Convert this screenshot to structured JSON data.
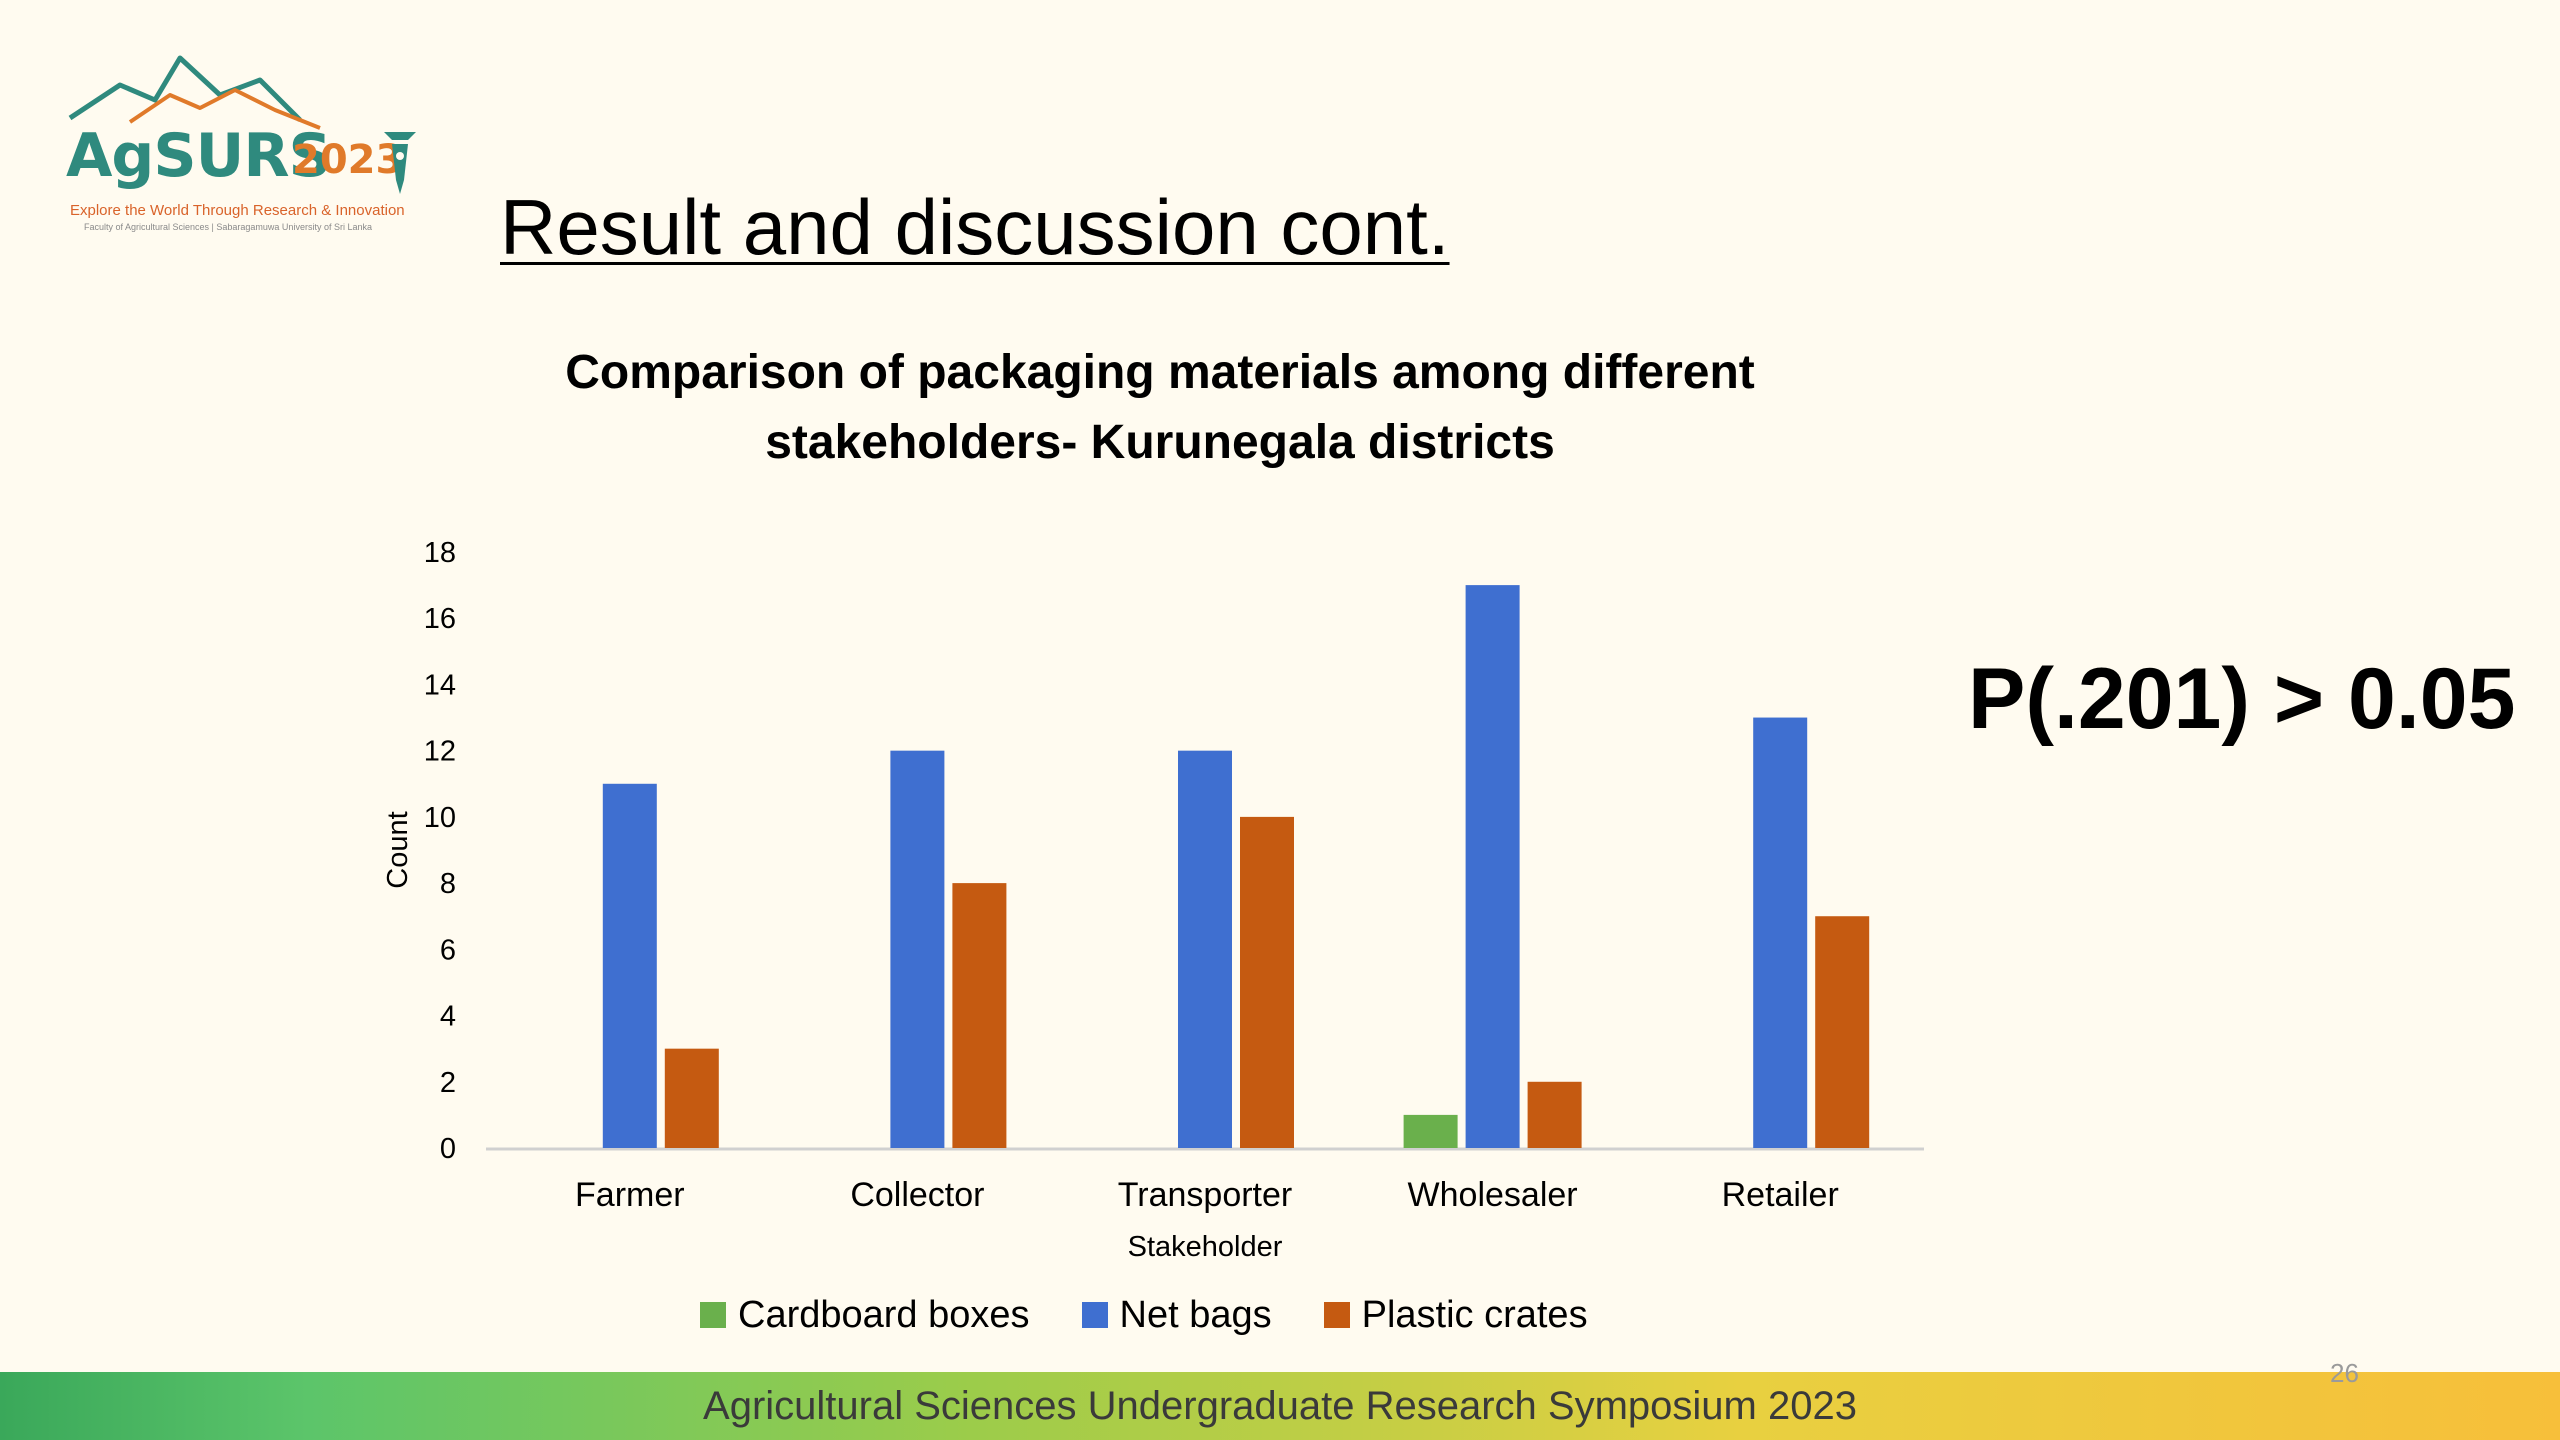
{
  "logo": {
    "word": "AgSURS",
    "year": "2023",
    "tagline": "Explore the World Through Research & Innovation",
    "subtagline": "Faculty of Agricultural Sciences | Sabaragamuwa University of Sri Lanka"
  },
  "slide": {
    "title": "Result and discussion cont.",
    "stat_text": "P(.201) > 0.05",
    "footer_text": "Agricultural Sciences Undergraduate Research Symposium 2023",
    "page_number": "26"
  },
  "colors": {
    "cardboard": "#6ab04c",
    "net": "#3f6fd0",
    "plastic": "#c55a11"
  },
  "chart_data": {
    "type": "bar",
    "title_line1": "Comparison of packaging materials among different",
    "title_line2": "stakeholders- Kurunegala districts",
    "xlabel": "Stakeholder",
    "ylabel": "Count",
    "categories": [
      "Farmer",
      "Collector",
      "Transporter",
      "Wholesaler",
      "Retailer"
    ],
    "series": [
      {
        "name": "Cardboard boxes",
        "values": [
          0,
          0,
          0,
          1,
          0
        ]
      },
      {
        "name": "Net bags",
        "values": [
          11,
          12,
          12,
          17,
          13
        ]
      },
      {
        "name": "Plastic crates",
        "values": [
          3,
          8,
          10,
          2,
          7
        ]
      }
    ],
    "ylim": [
      0,
      18
    ],
    "yticks": [
      0,
      2,
      4,
      6,
      8,
      10,
      12,
      14,
      16,
      18
    ],
    "grid": false,
    "legend_position": "bottom"
  }
}
